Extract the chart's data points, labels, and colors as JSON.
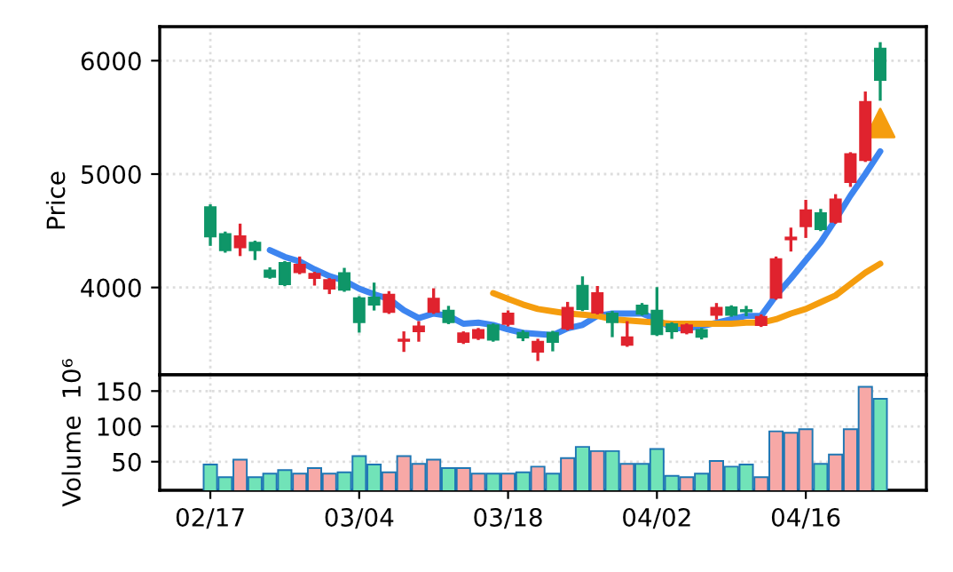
{
  "chart_data": [
    {
      "type": "candlestick",
      "ylabel": "Price",
      "ohlc": [
        [
          4708,
          4720,
          4380,
          4450
        ],
        [
          4470,
          4480,
          4320,
          4330
        ],
        [
          4355,
          4550,
          4290,
          4450
        ],
        [
          4395,
          4400,
          4255,
          4330
        ],
        [
          4150,
          4165,
          4090,
          4095
        ],
        [
          4215,
          4220,
          4025,
          4030
        ],
        [
          4135,
          4260,
          4130,
          4200
        ],
        [
          4085,
          4125,
          4030,
          4120
        ],
        [
          3990,
          4070,
          3955,
          4065
        ],
        [
          4125,
          4160,
          3975,
          3980
        ],
        [
          3905,
          3910,
          3615,
          3695
        ],
        [
          3910,
          4030,
          3810,
          3850
        ],
        [
          3785,
          3955,
          3780,
          3935
        ],
        [
          3530,
          3600,
          3445,
          3540
        ],
        [
          3615,
          3690,
          3535,
          3655
        ],
        [
          3785,
          3980,
          3780,
          3900
        ],
        [
          3795,
          3825,
          3690,
          3695
        ],
        [
          3520,
          3600,
          3515,
          3595
        ],
        [
          3555,
          3630,
          3550,
          3625
        ],
        [
          3665,
          3670,
          3535,
          3540
        ],
        [
          3680,
          3785,
          3670,
          3770
        ],
        [
          3600,
          3610,
          3540,
          3560
        ],
        [
          3435,
          3535,
          3365,
          3520
        ],
        [
          3600,
          3605,
          3450,
          3520
        ],
        [
          3640,
          3860,
          3635,
          3820
        ],
        [
          4015,
          4085,
          3805,
          3810
        ],
        [
          3780,
          4000,
          3775,
          3950
        ],
        [
          3770,
          3780,
          3575,
          3695
        ],
        [
          3495,
          3690,
          3490,
          3560
        ],
        [
          3840,
          3850,
          3765,
          3770
        ],
        [
          3795,
          3990,
          3585,
          3590
        ],
        [
          3675,
          3680,
          3560,
          3615
        ],
        [
          3605,
          3670,
          3600,
          3665
        ],
        [
          3625,
          3630,
          3555,
          3565
        ],
        [
          3760,
          3850,
          3730,
          3820
        ],
        [
          3825,
          3830,
          3755,
          3760
        ],
        [
          3800,
          3825,
          3760,
          3790
        ],
        [
          3670,
          3750,
          3665,
          3740
        ],
        [
          3910,
          4260,
          3905,
          4250
        ],
        [
          4425,
          4515,
          4330,
          4440
        ],
        [
          4540,
          4760,
          4450,
          4680
        ],
        [
          4655,
          4680,
          4510,
          4515
        ],
        [
          4580,
          4810,
          4575,
          4775
        ],
        [
          4930,
          5180,
          4900,
          5175
        ],
        [
          5125,
          5715,
          5120,
          5635
        ],
        [
          6105,
          6150,
          5660,
          5830
        ]
      ],
      "colors": [
        "#0f9668",
        "#0f9668",
        "#e0232e",
        "#0f9668",
        "#0f9668",
        "#0f9668",
        "#e0232e",
        "#e0232e",
        "#e0232e",
        "#0f9668",
        "#0f9668",
        "#0f9668",
        "#e0232e",
        "#e0232e",
        "#e0232e",
        "#e0232e",
        "#0f9668",
        "#e0232e",
        "#e0232e",
        "#0f9668",
        "#e0232e",
        "#0f9668",
        "#e0232e",
        "#0f9668",
        "#e0232e",
        "#0f9668",
        "#e0232e",
        "#0f9668",
        "#e0232e",
        "#0f9668",
        "#0f9668",
        "#0f9668",
        "#e0232e",
        "#0f9668",
        "#e0232e",
        "#0f9668",
        "#0f9668",
        "#e0232e",
        "#e0232e",
        "#e0232e",
        "#e0232e",
        "#0f9668",
        "#e0232e",
        "#e0232e",
        "#e0232e",
        "#0f9668"
      ],
      "series": [
        {
          "type": "line",
          "color": "#3d85f0",
          "values": [
            null,
            null,
            null,
            null,
            4330,
            4270,
            4230,
            4160,
            4100,
            4060,
            3990,
            3940,
            3900,
            3800,
            3730,
            3770,
            3750,
            3680,
            3690,
            3670,
            3630,
            3600,
            3590,
            3580,
            3640,
            3670,
            3750,
            3770,
            3770,
            3770,
            3720,
            3640,
            3640,
            3660,
            3690,
            3720,
            3750,
            3750,
            3930,
            4080,
            4240,
            4400,
            4600,
            4810,
            5000,
            5200
          ]
        },
        {
          "type": "line",
          "color": "#f59d0e",
          "values": [
            null,
            null,
            null,
            null,
            null,
            null,
            null,
            null,
            null,
            null,
            null,
            null,
            null,
            null,
            null,
            null,
            null,
            null,
            null,
            3950,
            3900,
            3850,
            3810,
            3790,
            3770,
            3760,
            3750,
            3720,
            3710,
            3700,
            3690,
            3680,
            3680,
            3680,
            3680,
            3680,
            3690,
            3690,
            3720,
            3770,
            3810,
            3870,
            3930,
            4030,
            4130,
            4210
          ]
        },
        {
          "type": "scatter",
          "marker": "triangle",
          "color": "#f59d0e",
          "values": [
            null,
            null,
            null,
            null,
            null,
            null,
            null,
            null,
            null,
            null,
            null,
            null,
            null,
            null,
            null,
            null,
            null,
            null,
            null,
            null,
            null,
            null,
            null,
            null,
            null,
            null,
            null,
            null,
            null,
            null,
            null,
            null,
            null,
            null,
            null,
            null,
            null,
            null,
            null,
            null,
            null,
            null,
            null,
            null,
            null,
            5450
          ]
        }
      ],
      "ylim": [
        3230,
        6300
      ],
      "yticks": [
        4000,
        5000,
        6000
      ],
      "grid": true,
      "tick_labels": "y"
    },
    {
      "type": "bar",
      "ylabel": "Volume  10⁶",
      "categories": [
        "02/17",
        null,
        null,
        null,
        null,
        null,
        null,
        null,
        null,
        null,
        "03/04",
        null,
        null,
        null,
        null,
        null,
        null,
        null,
        null,
        null,
        "03/18",
        null,
        null,
        null,
        null,
        null,
        null,
        null,
        null,
        null,
        "04/02",
        null,
        null,
        null,
        null,
        null,
        null,
        null,
        null,
        null,
        "04/16",
        null,
        null,
        null,
        null,
        null
      ],
      "values": [
        46,
        28,
        53,
        28,
        33,
        38,
        33,
        41,
        33,
        35,
        58,
        46,
        35,
        58,
        47,
        53,
        41,
        41,
        33,
        33,
        33,
        35,
        43,
        33,
        55,
        71,
        65,
        65,
        47,
        47,
        68,
        30,
        28,
        33,
        51,
        43,
        46,
        28,
        93,
        91,
        96,
        47,
        60,
        96,
        156,
        139
      ],
      "colors": [
        "#71e3b8",
        "#71e3b8",
        "#f7a8a6",
        "#71e3b8",
        "#71e3b8",
        "#71e3b8",
        "#f7a8a6",
        "#f7a8a6",
        "#f7a8a6",
        "#71e3b8",
        "#71e3b8",
        "#71e3b8",
        "#f7a8a6",
        "#f7a8a6",
        "#f7a8a6",
        "#f7a8a6",
        "#71e3b8",
        "#f7a8a6",
        "#f7a8a6",
        "#71e3b8",
        "#f7a8a6",
        "#71e3b8",
        "#f7a8a6",
        "#71e3b8",
        "#f7a8a6",
        "#71e3b8",
        "#f7a8a6",
        "#71e3b8",
        "#f7a8a6",
        "#71e3b8",
        "#71e3b8",
        "#71e3b8",
        "#f7a8a6",
        "#71e3b8",
        "#f7a8a6",
        "#71e3b8",
        "#71e3b8",
        "#f7a8a6",
        "#f7a8a6",
        "#f7a8a6",
        "#f7a8a6",
        "#71e3b8",
        "#f7a8a6",
        "#f7a8a6",
        "#f7a8a6",
        "#71e3b8"
      ],
      "ylim": [
        9.5,
        173
      ],
      "yticks": [
        50,
        100,
        150
      ],
      "grid": true
    }
  ]
}
